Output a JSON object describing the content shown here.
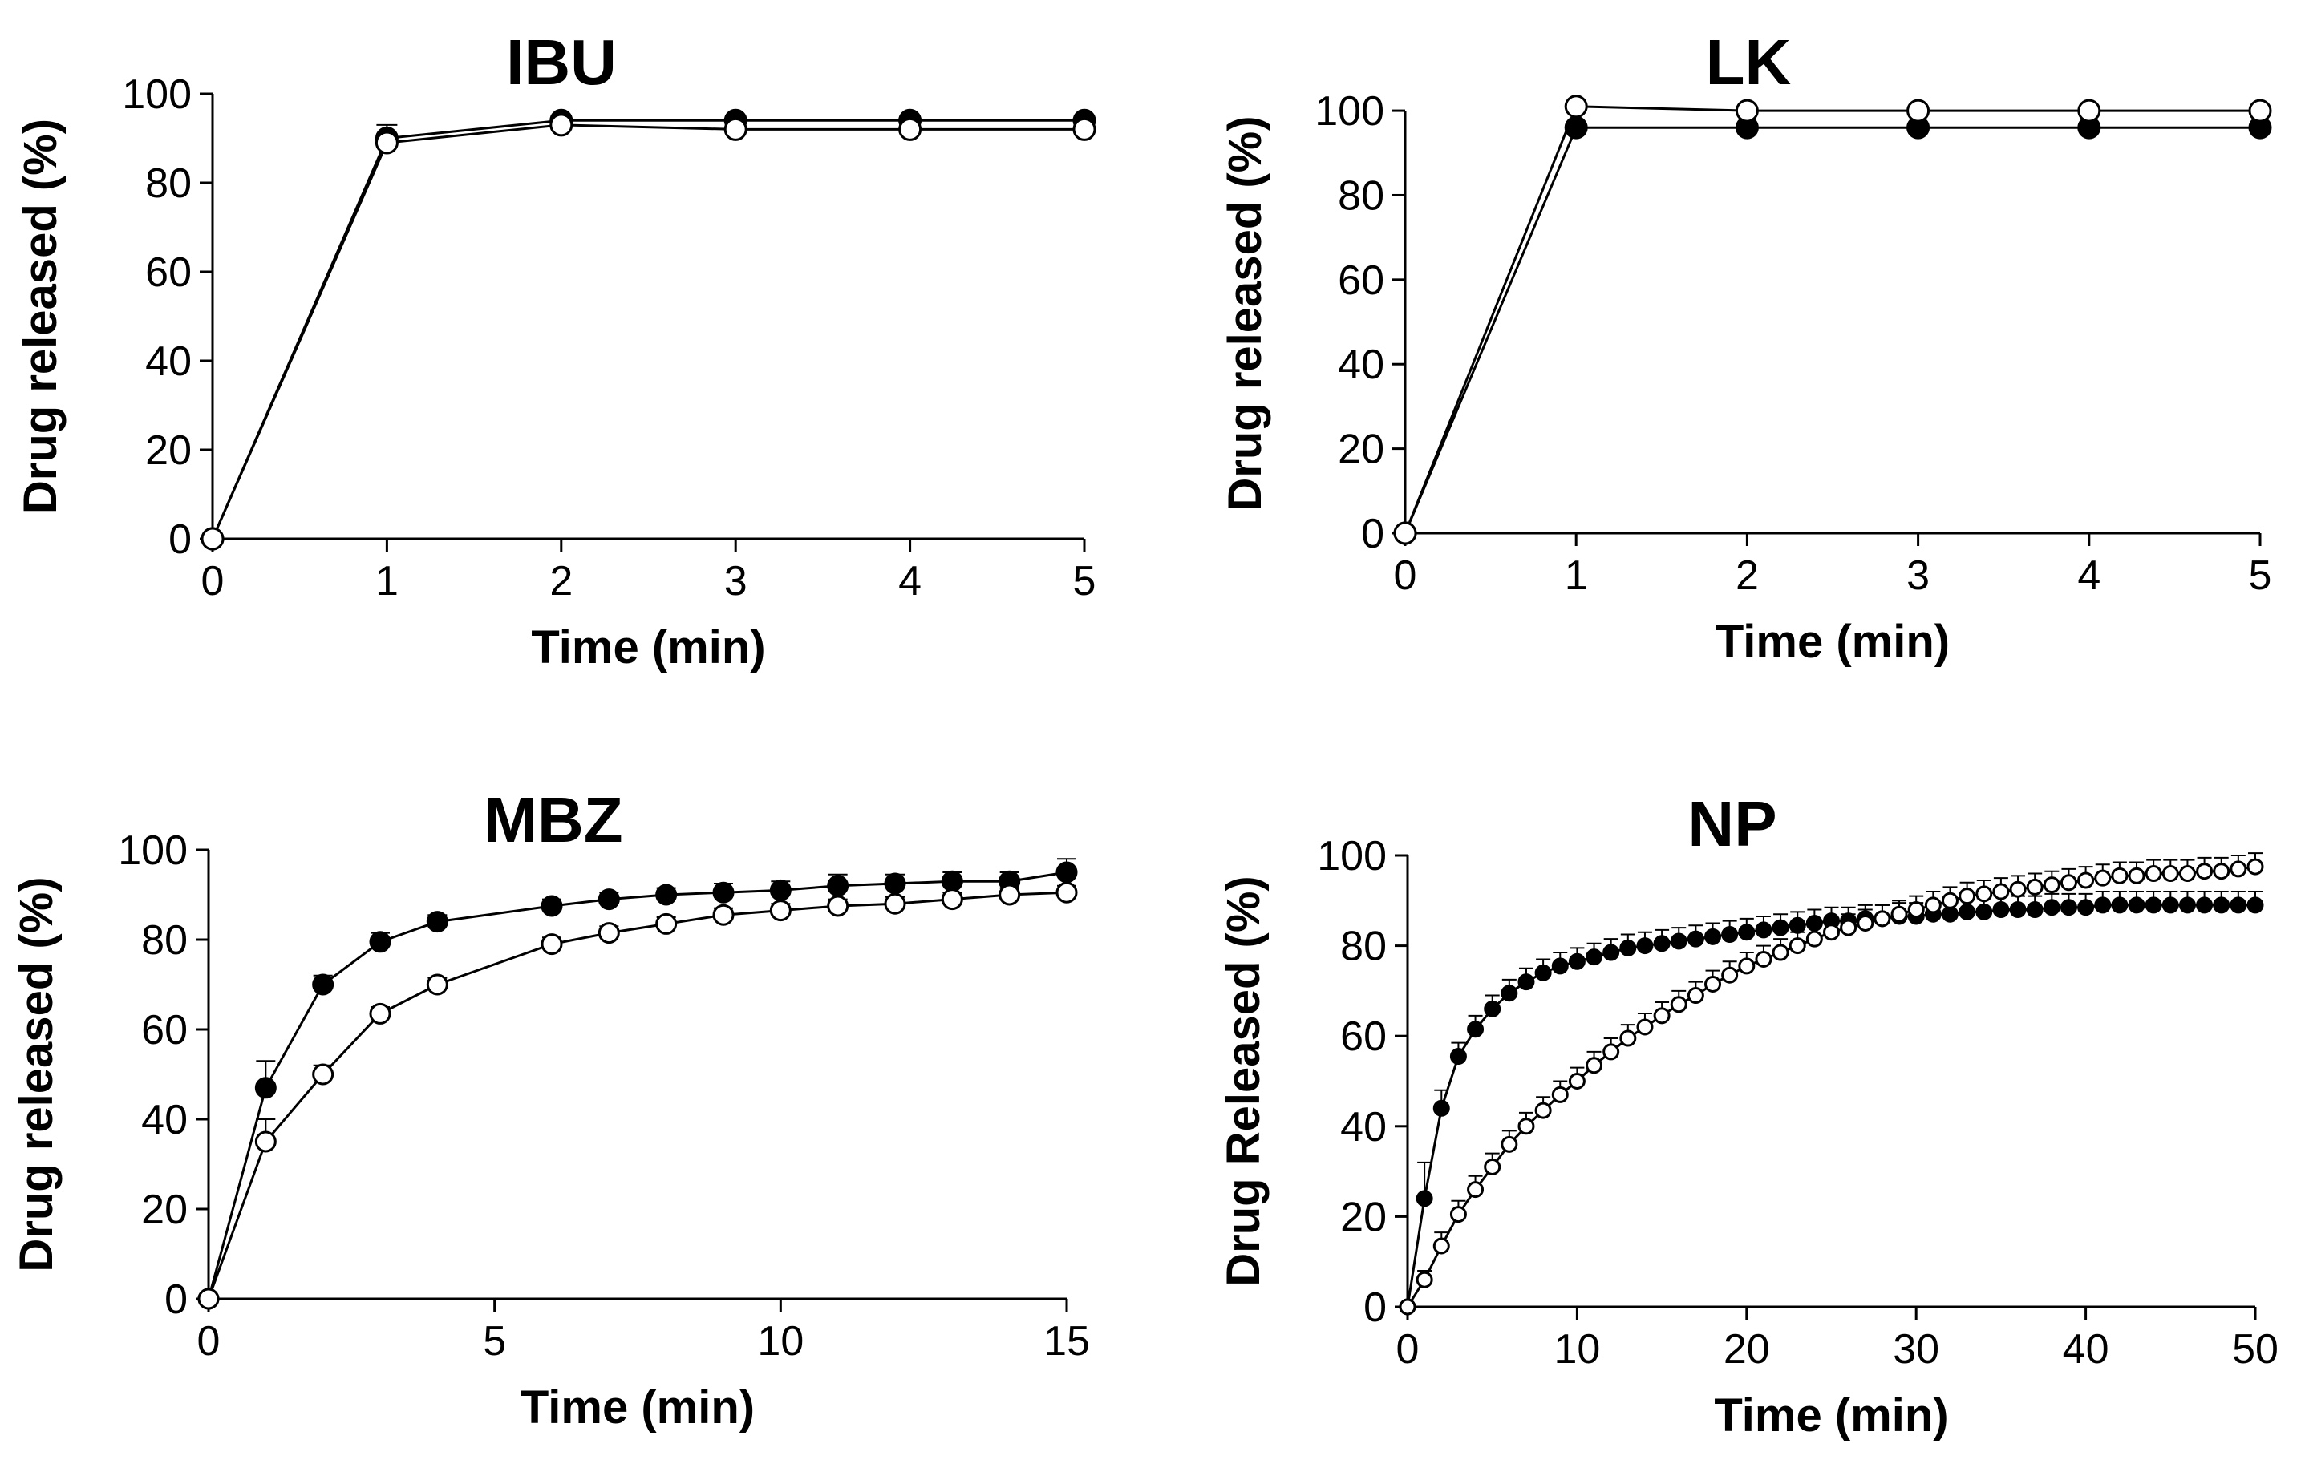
{
  "chart_data": [
    {
      "type": "line",
      "title": "IBU",
      "xlabel": "Time (min)",
      "ylabel": "Drug released (%)",
      "xlim": [
        0,
        5
      ],
      "ylim": [
        0,
        100
      ],
      "xticks": [
        0,
        1,
        2,
        3,
        4,
        5
      ],
      "yticks": [
        0,
        20,
        40,
        60,
        80,
        100
      ],
      "grid": false,
      "series": [
        {
          "name": "filled",
          "marker": "filled-circle",
          "x": [
            0,
            1,
            2,
            3,
            4,
            5
          ],
          "y": [
            0,
            90,
            94,
            94,
            94,
            94
          ],
          "err": [
            0,
            3,
            1,
            1,
            1,
            1
          ]
        },
        {
          "name": "open",
          "marker": "open-circle",
          "x": [
            0,
            1,
            2,
            3,
            4,
            5
          ],
          "y": [
            0,
            89,
            93,
            92,
            92,
            92
          ],
          "err": [
            0,
            2,
            1,
            1,
            1,
            1
          ]
        }
      ]
    },
    {
      "type": "line",
      "title": "LK",
      "xlabel": "Time (min)",
      "ylabel": "Drug released (%)",
      "xlim": [
        0,
        5
      ],
      "ylim": [
        0,
        104
      ],
      "xticks": [
        0,
        1,
        2,
        3,
        4,
        5
      ],
      "yticks": [
        0,
        20,
        40,
        60,
        80,
        100
      ],
      "grid": false,
      "series": [
        {
          "name": "filled",
          "marker": "filled-circle",
          "x": [
            0,
            1,
            2,
            3,
            4,
            5
          ],
          "y": [
            0,
            96,
            96,
            96,
            96,
            96
          ],
          "err": [
            0,
            0,
            0,
            0,
            0,
            0
          ]
        },
        {
          "name": "open",
          "marker": "open-circle",
          "x": [
            0,
            1,
            2,
            3,
            4,
            5
          ],
          "y": [
            0,
            101,
            100,
            100,
            100,
            100
          ],
          "err": [
            0,
            0,
            0,
            0,
            0,
            0
          ]
        }
      ]
    },
    {
      "type": "line",
      "title": "MBZ",
      "xlabel": "Time (min)",
      "ylabel": "Drug released (%)",
      "xlim": [
        0,
        15
      ],
      "ylim": [
        0,
        100
      ],
      "xticks": [
        0,
        5,
        10,
        15
      ],
      "yticks": [
        0,
        20,
        40,
        60,
        80,
        100
      ],
      "grid": false,
      "series": [
        {
          "name": "filled",
          "marker": "filled-circle",
          "x": [
            0,
            1,
            2,
            3,
            4,
            6,
            7,
            8,
            9,
            10,
            11,
            12,
            13,
            14,
            15
          ],
          "y": [
            0,
            47,
            70,
            79.5,
            84,
            87.5,
            89,
            90,
            90.5,
            91,
            92,
            92.5,
            93,
            93,
            95
          ],
          "err": [
            0,
            6,
            2,
            2,
            1.5,
            1.5,
            1.5,
            1.5,
            2,
            2,
            2.5,
            2,
            2,
            2,
            3
          ]
        },
        {
          "name": "open",
          "marker": "open-circle",
          "x": [
            0,
            1,
            2,
            3,
            4,
            6,
            7,
            8,
            9,
            10,
            11,
            12,
            13,
            14,
            15
          ],
          "y": [
            0,
            35,
            50,
            63.5,
            70,
            79,
            81.5,
            83.5,
            85.5,
            86.5,
            87.5,
            88,
            89,
            90,
            90.5
          ],
          "err": [
            0,
            5,
            2,
            1.5,
            1.5,
            1.5,
            1.5,
            1.5,
            1.5,
            1.5,
            1.5,
            1.5,
            1.5,
            1.5,
            1.5
          ]
        }
      ]
    },
    {
      "type": "line",
      "title": "NP",
      "xlabel": "Time (min)",
      "ylabel": "Drug Released (%)",
      "xlim": [
        0,
        50
      ],
      "ylim": [
        0,
        100
      ],
      "xticks": [
        0,
        10,
        20,
        30,
        40,
        50
      ],
      "yticks": [
        0,
        20,
        40,
        60,
        80,
        100
      ],
      "grid": false,
      "series": [
        {
          "name": "filled",
          "marker": "filled-circle",
          "x": [
            0,
            1,
            2,
            3,
            4,
            5,
            6,
            7,
            8,
            9,
            10,
            11,
            12,
            13,
            14,
            15,
            16,
            17,
            18,
            19,
            20,
            21,
            22,
            23,
            24,
            25,
            26,
            27,
            28,
            29,
            30,
            31,
            32,
            33,
            34,
            35,
            36,
            37,
            38,
            39,
            40,
            41,
            42,
            43,
            44,
            45,
            46,
            47,
            48,
            49,
            50
          ],
          "y": [
            0,
            24,
            44,
            55.5,
            61.5,
            66,
            69.5,
            72,
            74,
            75.5,
            76.5,
            77.5,
            78.5,
            79.5,
            80,
            80.5,
            81,
            81.5,
            82,
            82.5,
            83,
            83.5,
            84,
            84.5,
            85,
            85.5,
            85.5,
            86,
            86,
            86.5,
            86.5,
            87,
            87,
            87.5,
            87.5,
            88,
            88,
            88,
            88.5,
            88.5,
            88.5,
            89,
            89,
            89,
            89,
            89,
            89,
            89,
            89,
            89,
            89
          ],
          "err": [
            0,
            8,
            4,
            3,
            3,
            3,
            3,
            3,
            3,
            3,
            3,
            3,
            3,
            3,
            3,
            3,
            3,
            3,
            3,
            3,
            3,
            3,
            3,
            3,
            3,
            3,
            3,
            3,
            3,
            3,
            3,
            3,
            3,
            3,
            3,
            3,
            3,
            3,
            3,
            3,
            3,
            3,
            3,
            3,
            3,
            3,
            3,
            3,
            3,
            3,
            3
          ]
        },
        {
          "name": "open",
          "marker": "open-circle",
          "x": [
            0,
            1,
            2,
            3,
            4,
            5,
            6,
            7,
            8,
            9,
            10,
            11,
            12,
            13,
            14,
            15,
            16,
            17,
            18,
            19,
            20,
            21,
            22,
            23,
            24,
            25,
            26,
            27,
            28,
            29,
            30,
            31,
            32,
            33,
            34,
            35,
            36,
            37,
            38,
            39,
            40,
            41,
            42,
            43,
            44,
            45,
            46,
            47,
            48,
            49,
            50
          ],
          "y": [
            0,
            6,
            13.5,
            20.5,
            26,
            31,
            36,
            40,
            43.5,
            47,
            50,
            53.5,
            56.5,
            59.5,
            62,
            64.5,
            67,
            69,
            71.5,
            73.5,
            75.5,
            77,
            78.5,
            80,
            81.5,
            83,
            84,
            85,
            86,
            87,
            88,
            89,
            90,
            91,
            91.5,
            92,
            92.5,
            93,
            93.5,
            94,
            94.5,
            95,
            95.5,
            95.5,
            96,
            96,
            96,
            96.5,
            96.5,
            97,
            97.5
          ],
          "err": [
            0,
            2,
            3,
            3,
            3,
            3,
            3,
            3,
            3,
            3,
            3,
            3,
            3,
            3,
            3,
            3,
            3,
            3,
            3,
            3,
            3,
            3,
            3,
            3,
            3,
            3,
            3,
            3,
            3,
            3,
            3,
            3,
            3,
            3,
            3,
            3,
            3,
            3,
            3,
            3,
            3,
            3,
            3,
            3,
            3,
            3,
            3,
            3,
            3,
            3,
            3
          ]
        }
      ]
    }
  ]
}
